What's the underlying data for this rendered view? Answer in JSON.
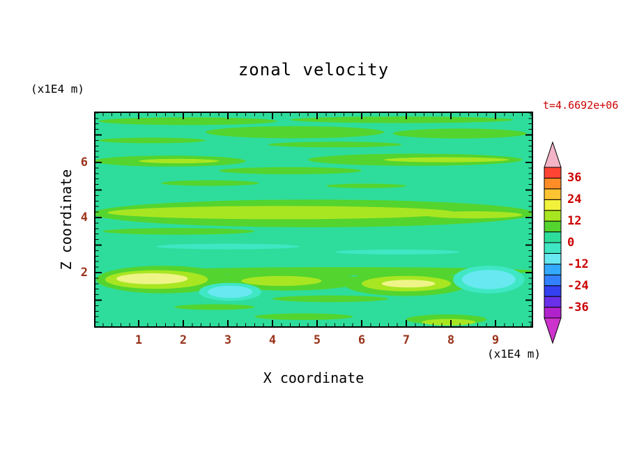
{
  "title": "zonal velocity",
  "timestamp": "t=4.6692e+06",
  "colors": {
    "background": "#FFFFFF",
    "frame": "#000000",
    "axis_tick_label": "#99331A",
    "annotation_red": "#CC0000"
  },
  "x_axis": {
    "label": "X coordinate",
    "units": "(x1E4 m)"
  },
  "y_axis": {
    "label": "Z coordinate",
    "units": "(x1E4 m)"
  },
  "chart_data": {
    "type": "filled_contour",
    "title": "zonal velocity",
    "xlabel": "X coordinate",
    "ylabel": "Z coordinate",
    "x_units": "(x1E4 m)",
    "y_units": "(x1E4 m)",
    "time_label": "t=4.6692e+06",
    "x_range": [
      0,
      9.84
    ],
    "z_range": [
      0,
      7.85
    ],
    "x_ticks": [
      1,
      2,
      3,
      4,
      5,
      6,
      7,
      8,
      9
    ],
    "z_ticks": [
      2,
      4,
      6
    ],
    "minor_tick_step": 0.2,
    "contour_interval": 6,
    "grid": false,
    "legend_position": "right-colorbar",
    "level_colors": {
      "base": "#2EDD9C",
      "p1": "#54D42E",
      "p2": "#A8E622",
      "p3": "#EEF487",
      "m1": "#3FE7C4",
      "m2": "#68E8F0"
    },
    "level_meaning": {
      "base": "0 to 6",
      "p1": "6 to 12",
      "p2": "12 to 18",
      "p3": "18 to 24",
      "m1": "-6 to 0",
      "m2": "-12 to -6"
    },
    "colorbar": {
      "tick_values": [
        36,
        24,
        12,
        0,
        -12,
        -24,
        -36
      ],
      "range": [
        -42,
        42
      ],
      "colors_bottom_to_top": [
        "#B122CC",
        "#6A2FE8",
        "#3341F0",
        "#3380FF",
        "#33AAFF",
        "#68E8F0",
        "#3FE7C4",
        "#2EDD9C",
        "#54D42E",
        "#A8E622",
        "#F2F23C",
        "#FFC433",
        "#FF8C26",
        "#FF4433"
      ],
      "arrow_top_color": "#F2B4C6",
      "arrow_bottom_color": "#CC33CC"
    },
    "regions": [
      {
        "x": 2.1,
        "z": 7.5,
        "rx": 2.0,
        "rz": 0.14,
        "level": "p1"
      },
      {
        "x": 6.9,
        "z": 7.55,
        "rx": 2.5,
        "rz": 0.12,
        "level": "p1"
      },
      {
        "x": 4.5,
        "z": 7.1,
        "rx": 2.0,
        "rz": 0.22,
        "level": "p1"
      },
      {
        "x": 8.2,
        "z": 7.05,
        "rx": 1.5,
        "rz": 0.18,
        "level": "p1"
      },
      {
        "x": 1.3,
        "z": 6.8,
        "rx": 1.2,
        "rz": 0.1,
        "level": "p1"
      },
      {
        "x": 5.4,
        "z": 6.65,
        "rx": 1.5,
        "rz": 0.1,
        "level": "p1"
      },
      {
        "x": 1.7,
        "z": 6.05,
        "rx": 1.7,
        "rz": 0.2,
        "level": "p1"
      },
      {
        "x": 7.2,
        "z": 6.1,
        "rx": 2.4,
        "rz": 0.22,
        "level": "p1"
      },
      {
        "x": 7.9,
        "z": 6.1,
        "rx": 1.4,
        "rz": 0.09,
        "level": "p2"
      },
      {
        "x": 1.9,
        "z": 6.05,
        "rx": 0.9,
        "rz": 0.08,
        "level": "p2"
      },
      {
        "x": 4.4,
        "z": 5.7,
        "rx": 1.6,
        "rz": 0.13,
        "level": "p1"
      },
      {
        "x": 2.6,
        "z": 5.25,
        "rx": 1.1,
        "rz": 0.1,
        "level": "p1"
      },
      {
        "x": 6.1,
        "z": 5.15,
        "rx": 0.9,
        "rz": 0.08,
        "level": "p1"
      },
      {
        "x": 4.92,
        "z": 4.15,
        "rx": 4.95,
        "rz": 0.5,
        "level": "p1"
      },
      {
        "x": 4.2,
        "z": 4.18,
        "rx": 3.9,
        "rz": 0.24,
        "level": "p2"
      },
      {
        "x": 8.5,
        "z": 4.1,
        "rx": 1.1,
        "rz": 0.13,
        "level": "p2"
      },
      {
        "x": 1.9,
        "z": 3.5,
        "rx": 1.7,
        "rz": 0.12,
        "level": "p1"
      },
      {
        "x": 3.0,
        "z": 2.95,
        "rx": 1.6,
        "rz": 0.1,
        "level": "m1"
      },
      {
        "x": 6.8,
        "z": 2.75,
        "rx": 1.4,
        "rz": 0.09,
        "level": "m1"
      },
      {
        "x": 5.6,
        "z": 2.05,
        "rx": 4.3,
        "rz": 0.15,
        "level": "p1"
      },
      {
        "x": 1.55,
        "z": 1.75,
        "rx": 1.5,
        "rz": 0.5,
        "level": "p1"
      },
      {
        "x": 1.4,
        "z": 1.75,
        "rx": 1.15,
        "rz": 0.34,
        "level": "p2"
      },
      {
        "x": 1.3,
        "z": 1.78,
        "rx": 0.8,
        "rz": 0.2,
        "level": "p3"
      },
      {
        "x": 4.3,
        "z": 1.7,
        "rx": 1.7,
        "rz": 0.35,
        "level": "p1"
      },
      {
        "x": 4.2,
        "z": 1.7,
        "rx": 0.9,
        "rz": 0.18,
        "level": "p2"
      },
      {
        "x": 7.0,
        "z": 1.6,
        "rx": 1.4,
        "rz": 0.45,
        "level": "p1"
      },
      {
        "x": 7.0,
        "z": 1.6,
        "rx": 1.0,
        "rz": 0.28,
        "level": "p2"
      },
      {
        "x": 7.05,
        "z": 1.6,
        "rx": 0.6,
        "rz": 0.14,
        "level": "p3"
      },
      {
        "x": 3.05,
        "z": 1.3,
        "rx": 0.7,
        "rz": 0.33,
        "level": "m1"
      },
      {
        "x": 3.05,
        "z": 1.3,
        "rx": 0.5,
        "rz": 0.22,
        "level": "m2"
      },
      {
        "x": 8.85,
        "z": 1.75,
        "rx": 0.8,
        "rz": 0.5,
        "level": "m1"
      },
      {
        "x": 8.85,
        "z": 1.75,
        "rx": 0.6,
        "rz": 0.35,
        "level": "m2"
      },
      {
        "x": 5.3,
        "z": 1.05,
        "rx": 1.3,
        "rz": 0.12,
        "level": "p1"
      },
      {
        "x": 2.7,
        "z": 0.75,
        "rx": 0.9,
        "rz": 0.1,
        "level": "p1"
      },
      {
        "x": 7.9,
        "z": 0.3,
        "rx": 0.9,
        "rz": 0.18,
        "level": "p1"
      },
      {
        "x": 7.95,
        "z": 0.2,
        "rx": 0.6,
        "rz": 0.12,
        "level": "p2"
      },
      {
        "x": 4.7,
        "z": 0.4,
        "rx": 1.1,
        "rz": 0.12,
        "level": "p1"
      }
    ]
  }
}
